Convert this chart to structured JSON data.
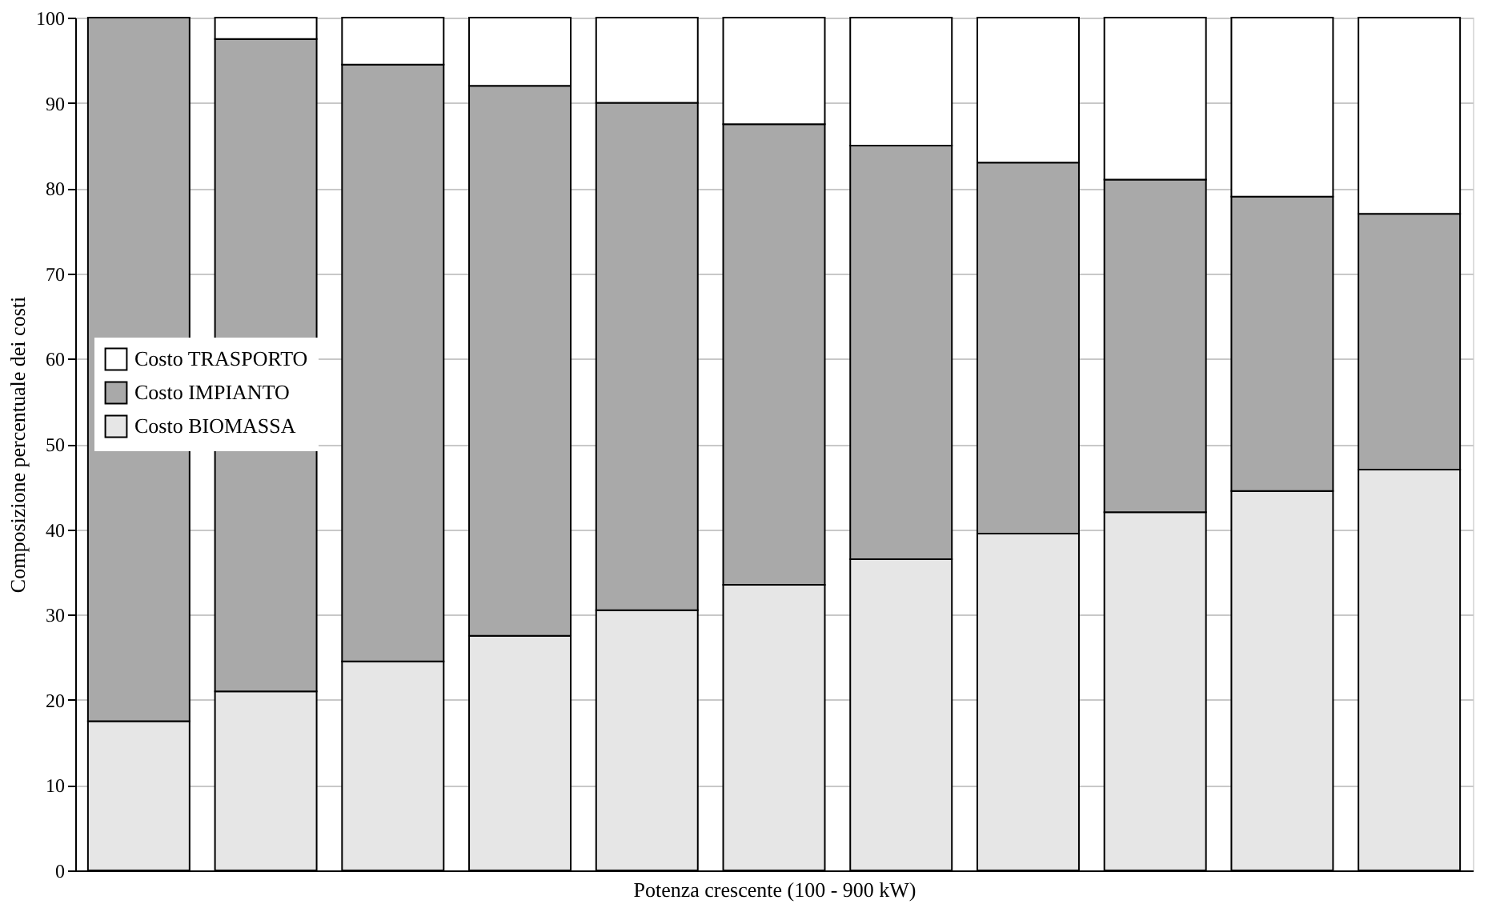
{
  "chart_data": {
    "type": "bar",
    "stacked": true,
    "xlabel": "Potenza crescente (100 - 900 kW)",
    "ylabel": "Composizione percentuale dei costi",
    "categories": [
      null,
      null,
      null,
      null,
      null,
      null,
      null,
      null,
      null,
      null,
      null
    ],
    "series": [
      {
        "name": "Costo BIOMASSA",
        "color": "#e6e6e6",
        "values": [
          17.5,
          21,
          24.5,
          27.5,
          30.5,
          33.5,
          36.5,
          39.5,
          42,
          44.5,
          47
        ]
      },
      {
        "name": "Costo IMPIANTO",
        "color": "#a9a9a9",
        "values": [
          82.5,
          76.5,
          70,
          64.5,
          59.5,
          54,
          48.5,
          43.5,
          39,
          34.5,
          30
        ]
      },
      {
        "name": "Costo TRASPORTO",
        "color": "#ffffff",
        "values": [
          null,
          2.5,
          5.5,
          8,
          10,
          12.5,
          15,
          17,
          19,
          21,
          23
        ]
      }
    ],
    "ylim": [
      0,
      100
    ],
    "yticks": [
      0,
      10,
      20,
      30,
      40,
      50,
      60,
      70,
      80,
      90,
      100
    ],
    "grid": "y",
    "legend": "left"
  }
}
